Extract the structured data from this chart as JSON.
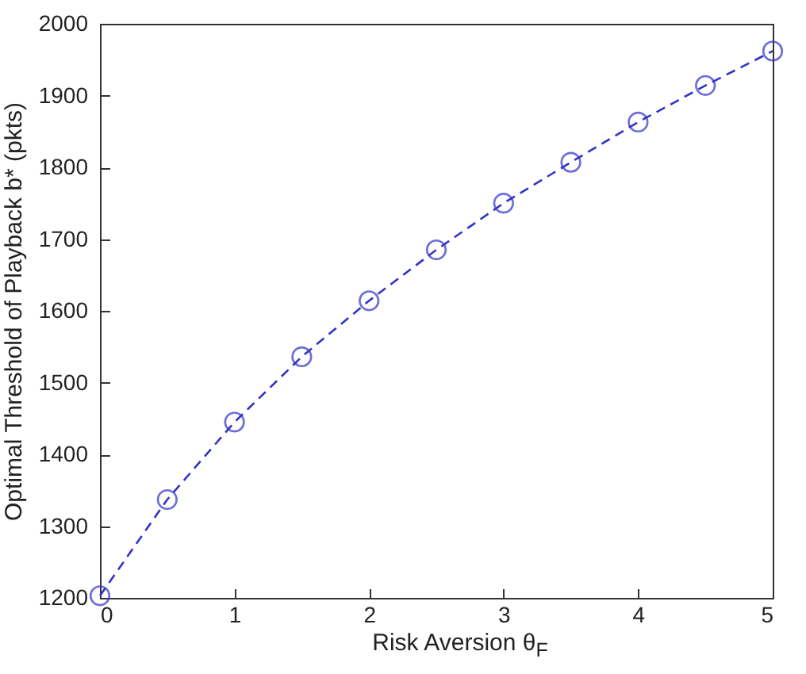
{
  "chart_data": {
    "type": "line",
    "xlabel": "Risk Aversion θ$_{F}$",
    "ylabel": "Optimal Threshold of Playback b* (pkts)",
    "x": [
      0,
      0.5,
      1,
      1.5,
      2,
      2.5,
      3,
      3.5,
      4,
      4.5,
      5
    ],
    "series": [
      {
        "color": "#3232c8",
        "values": [
          1203,
          1337,
          1445,
          1536,
          1614,
          1685,
          1750,
          1807,
          1863,
          1914,
          1962
        ]
      }
    ],
    "xlim": [
      0,
      5
    ],
    "xticks": [
      0,
      1,
      2,
      3,
      4,
      5
    ],
    "ylim": [
      1200,
      2000
    ],
    "yticks": [
      1200,
      1300,
      1400,
      1500,
      1600,
      1700,
      1800,
      1900,
      2000
    ],
    "grid": false,
    "marker": "circle",
    "line_style": "dashed",
    "legend": false
  }
}
